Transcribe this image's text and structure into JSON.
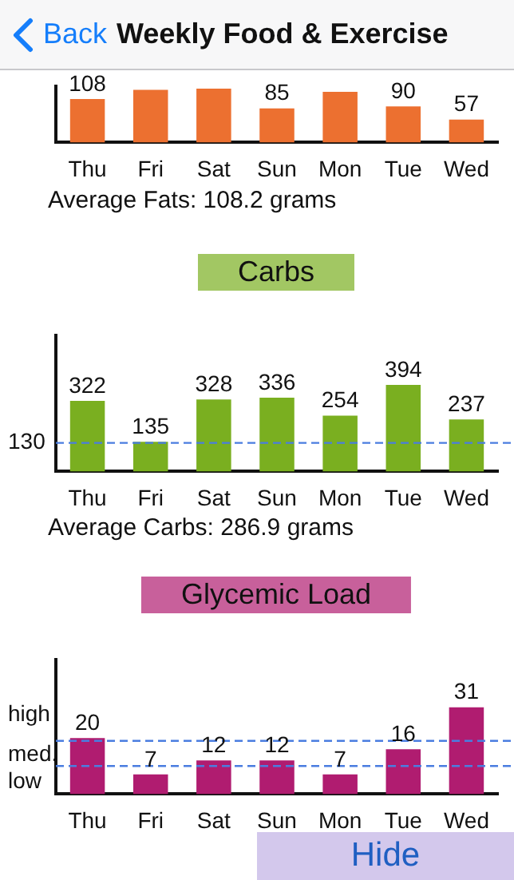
{
  "chart_data": [
    {
      "type": "other",
      "title": "Weekly Food & Exercise",
      "annotations": [
        "Back",
        "Hide"
      ]
    },
    {
      "type": "bar",
      "categories": [
        "Thu",
        "Fri",
        "Sat",
        "Sun",
        "Mon",
        "Tue",
        "Wed"
      ],
      "values": [
        108,
        131,
        134,
        85,
        126,
        90,
        57
      ],
      "value_labels": [
        "108",
        null,
        null,
        "85",
        null,
        "90",
        "57"
      ],
      "color": "#ec7030",
      "ylim": [
        0,
        140
      ],
      "tick_labels": "x",
      "annotations": [
        "Average Fats: 108.2 grams"
      ]
    },
    {
      "type": "bar",
      "title": "Carbs",
      "categories": [
        "Thu",
        "Fri",
        "Sat",
        "Sun",
        "Mon",
        "Tue",
        "Wed"
      ],
      "values": [
        322,
        135,
        328,
        336,
        254,
        394,
        237
      ],
      "data_labels": true,
      "color": "#7aaf20",
      "ylim": [
        0,
        620
      ],
      "tick_labels": "x",
      "ref_lines": [
        {
          "axis": "y",
          "value": 130,
          "label": "130",
          "color": "#4a7de0",
          "line_style": "dashed"
        }
      ],
      "annotations": [
        "Average Carbs: 286.9 grams"
      ]
    },
    {
      "type": "bar",
      "title": "Glycemic Load",
      "categories": [
        "Thu",
        "Fri",
        "Sat",
        "Sun",
        "Mon",
        "Tue",
        "Wed"
      ],
      "values": [
        20,
        7,
        12,
        12,
        7,
        16,
        31
      ],
      "data_labels": true,
      "color": "#b01c70",
      "ylim": [
        0,
        48
      ],
      "tick_labels": "x",
      "annotations": [
        "high",
        "med.",
        "low"
      ],
      "ref_lines": [
        {
          "axis": "y",
          "value": 19,
          "color": "#4a7de0",
          "line_style": "dashed"
        },
        {
          "axis": "y",
          "value": 10,
          "color": "#4a7de0",
          "line_style": "dashed"
        }
      ]
    }
  ]
}
